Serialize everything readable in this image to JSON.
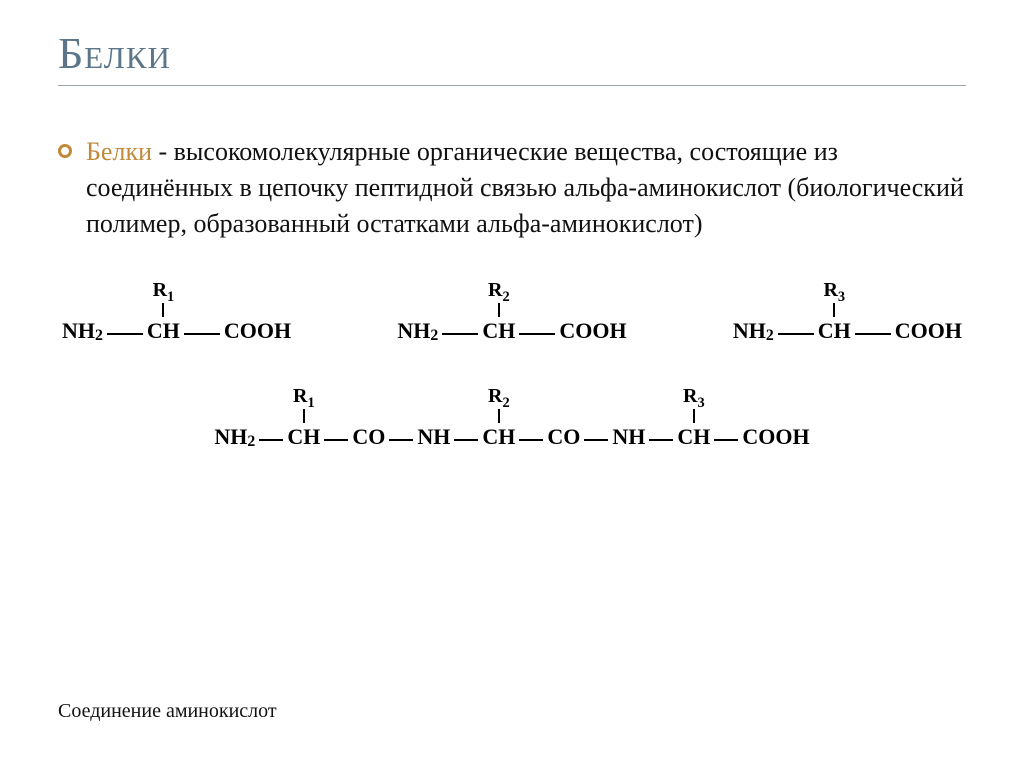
{
  "title": "Белки",
  "bullet": {
    "lead": "Белки",
    "rest": " - высокомолекулярные органические вещества, состоящие из соединённых в цепочку пептидной связью альфа-аминокислот (биологический полимер, образованный остатками альфа-аминокислот)"
  },
  "chem": {
    "r1": "R",
    "r1sub": "1",
    "r2": "R",
    "r2sub": "2",
    "r3": "R",
    "r3sub": "3",
    "nh2": "NH",
    "nh2sub": "2",
    "ch": "CH",
    "cooh": "COOH",
    "co": "CO",
    "nh": "NH"
  },
  "caption": "Соединение аминокислот",
  "style": {
    "title_color": "#5b768a",
    "accent_color": "#c08a3a",
    "text_color": "#111111",
    "rule_color": "#9aa7b0",
    "background": "#ffffff",
    "title_fontsize": 44,
    "body_fontsize": 26,
    "chem_fontsize": 22,
    "caption_fontsize": 20
  }
}
